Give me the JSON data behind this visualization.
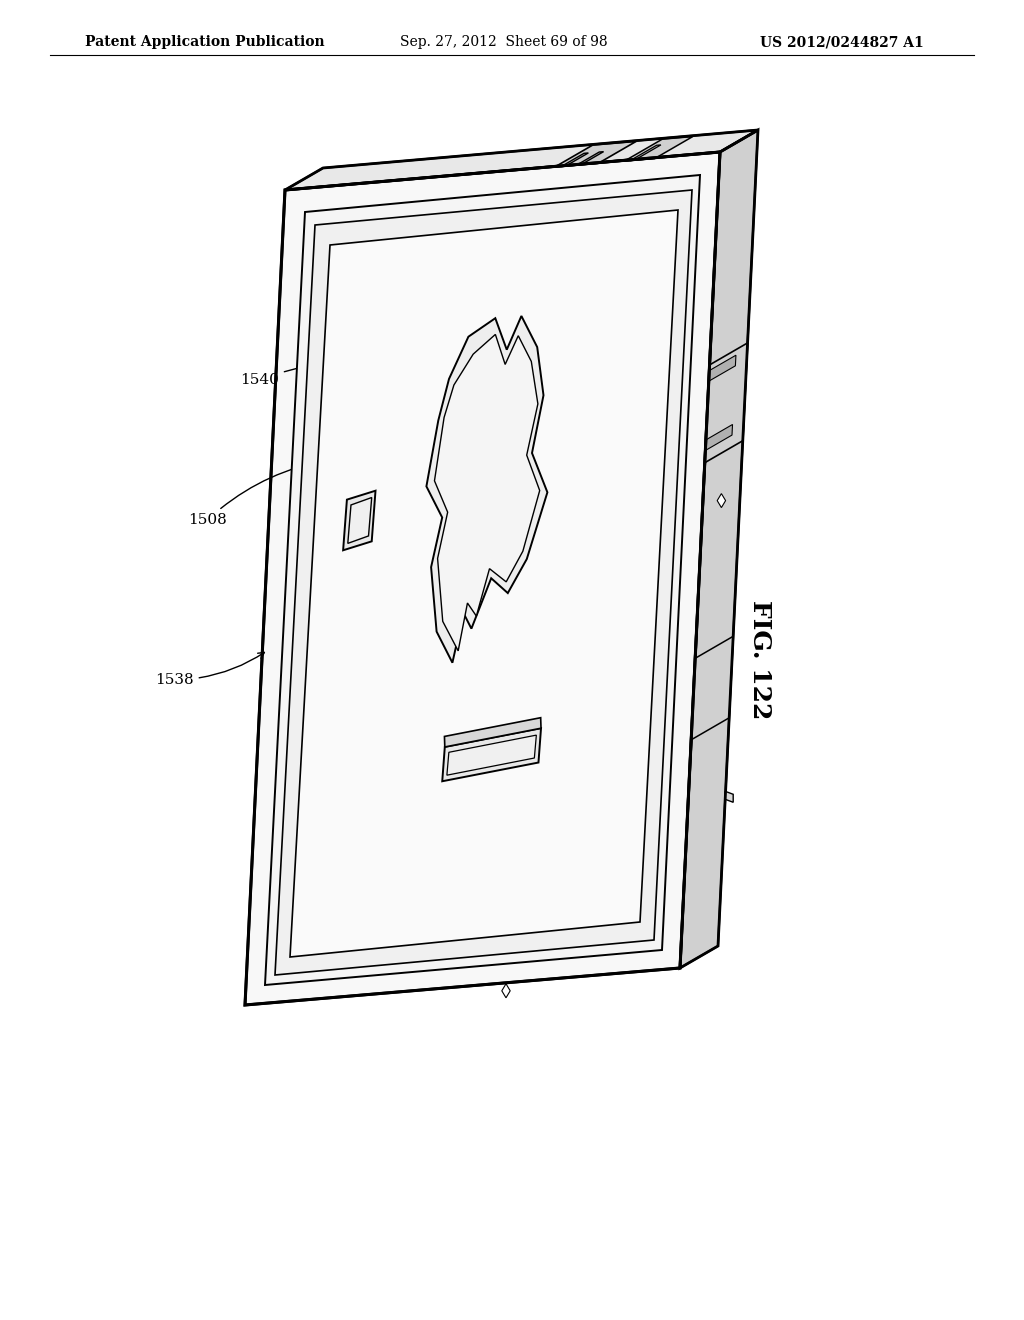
{
  "background_color": "#ffffff",
  "header_left": "Patent Application Publication",
  "header_center": "Sep. 27, 2012  Sheet 69 of 98",
  "header_right": "US 2012/0244827 A1",
  "fig_label": "FIG. 122",
  "label_fontsize": 11,
  "header_fontsize": 10
}
